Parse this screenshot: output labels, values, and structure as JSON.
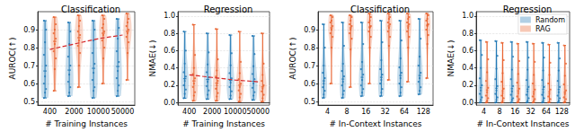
{
  "chart_data": [
    {
      "type": "violin",
      "title": "Classification",
      "x_label": "# Training Instances",
      "y_label": "AUROC(↑)",
      "categories": [
        "400",
        "2000",
        "10000",
        "50000"
      ],
      "ylim": [
        0.48,
        1.0
      ],
      "yticks": [
        0.5,
        0.6,
        0.7,
        0.8,
        0.9
      ],
      "grid": true,
      "series": [
        {
          "name": "Random",
          "color": "#1f77b4",
          "values": [
            [
              0.52,
              0.55,
              0.57,
              0.6,
              0.64,
              0.7,
              0.76,
              0.83,
              0.9,
              0.95
            ],
            [
              0.53,
              0.55,
              0.58,
              0.61,
              0.65,
              0.7,
              0.75,
              0.82,
              0.89,
              0.94
            ],
            [
              0.52,
              0.56,
              0.58,
              0.62,
              0.66,
              0.71,
              0.77,
              0.84,
              0.9,
              0.95
            ],
            [
              0.53,
              0.56,
              0.59,
              0.63,
              0.67,
              0.72,
              0.78,
              0.85,
              0.91,
              0.96
            ]
          ]
        },
        {
          "name": "RAG",
          "color": "#e8602c",
          "values": [
            [
              0.56,
              0.68,
              0.74,
              0.78,
              0.82,
              0.85,
              0.88,
              0.9,
              0.93,
              0.97
            ],
            [
              0.58,
              0.7,
              0.77,
              0.81,
              0.84,
              0.87,
              0.89,
              0.92,
              0.95,
              0.98
            ],
            [
              0.6,
              0.74,
              0.8,
              0.84,
              0.87,
              0.89,
              0.91,
              0.93,
              0.96,
              0.98
            ],
            [
              0.62,
              0.77,
              0.83,
              0.86,
              0.88,
              0.9,
              0.92,
              0.94,
              0.96,
              0.99
            ]
          ]
        },
        {
          "type": "line",
          "color": "#d62728",
          "line_style": "dashed",
          "values": [
            0.79,
            0.82,
            0.85,
            0.87
          ]
        }
      ]
    },
    {
      "type": "violin",
      "title": "Regression",
      "x_label": "# Training Instances",
      "y_label": "NMAE(↓)",
      "categories": [
        "400",
        "2000",
        "10000",
        "50000"
      ],
      "ylim": [
        -0.03,
        1.05
      ],
      "yticks": [
        {
          "value": 0,
          "label": "0.0"
        },
        0.2,
        0.4,
        0.6,
        0.8,
        {
          "value": 1,
          "label": "1.0"
        }
      ],
      "grid": true,
      "series": [
        {
          "name": "Random",
          "color": "#1f77b4",
          "values": [
            [
              0.05,
              0.1,
              0.15,
              0.2,
              0.25,
              0.3,
              0.35,
              0.45,
              0.6,
              0.82
            ],
            [
              0.04,
              0.09,
              0.14,
              0.19,
              0.24,
              0.29,
              0.35,
              0.44,
              0.58,
              0.8
            ],
            [
              0.04,
              0.08,
              0.13,
              0.18,
              0.23,
              0.28,
              0.34,
              0.43,
              0.57,
              0.78
            ],
            [
              0.03,
              0.08,
              0.12,
              0.17,
              0.22,
              0.27,
              0.33,
              0.42,
              0.56,
              0.77
            ]
          ]
        },
        {
          "name": "RAG",
          "color": "#e8602c",
          "values": [
            [
              0.02,
              0.08,
              0.12,
              0.18,
              0.22,
              0.28,
              0.33,
              0.4,
              0.55,
              0.9
            ],
            [
              0.02,
              0.07,
              0.11,
              0.16,
              0.2,
              0.25,
              0.3,
              0.37,
              0.5,
              0.85
            ],
            [
              0.01,
              0.06,
              0.1,
              0.14,
              0.18,
              0.22,
              0.27,
              0.34,
              0.47,
              0.82
            ],
            [
              0.01,
              0.05,
              0.09,
              0.13,
              0.16,
              0.2,
              0.25,
              0.32,
              0.45,
              0.8
            ]
          ]
        },
        {
          "type": "line",
          "color": "#d62728",
          "line_style": "dashed",
          "values": [
            0.32,
            0.29,
            0.26,
            0.24
          ]
        }
      ]
    },
    {
      "type": "violin",
      "title": "Classification",
      "x_label": "# In-Context Instances",
      "y_label": "AUROC(↑)",
      "categories": [
        "4",
        "8",
        "16",
        "32",
        "64",
        "128"
      ],
      "ylim": [
        0.48,
        1.0
      ],
      "yticks": [
        0.5,
        0.6,
        0.7,
        0.8,
        0.9
      ],
      "grid": true,
      "series": [
        {
          "name": "Random",
          "color": "#1f77b4",
          "values": [
            [
              0.52,
              0.54,
              0.56,
              0.58,
              0.6,
              0.63,
              0.66,
              0.7,
              0.8,
              0.93
            ],
            [
              0.52,
              0.54,
              0.56,
              0.59,
              0.61,
              0.64,
              0.67,
              0.71,
              0.81,
              0.94
            ],
            [
              0.53,
              0.55,
              0.57,
              0.59,
              0.62,
              0.65,
              0.68,
              0.72,
              0.82,
              0.94
            ],
            [
              0.53,
              0.55,
              0.57,
              0.6,
              0.62,
              0.65,
              0.68,
              0.73,
              0.83,
              0.95
            ],
            [
              0.53,
              0.55,
              0.58,
              0.6,
              0.63,
              0.66,
              0.69,
              0.74,
              0.84,
              0.95
            ],
            [
              0.54,
              0.56,
              0.58,
              0.61,
              0.63,
              0.66,
              0.7,
              0.75,
              0.85,
              0.96
            ]
          ]
        },
        {
          "name": "RAG",
          "color": "#e8602c",
          "values": [
            [
              0.6,
              0.8,
              0.86,
              0.88,
              0.9,
              0.92,
              0.94,
              0.95,
              0.97,
              0.98
            ],
            [
              0.58,
              0.79,
              0.85,
              0.88,
              0.9,
              0.92,
              0.93,
              0.95,
              0.97,
              0.98
            ],
            [
              0.6,
              0.8,
              0.86,
              0.89,
              0.91,
              0.92,
              0.94,
              0.95,
              0.97,
              0.99
            ],
            [
              0.62,
              0.81,
              0.86,
              0.89,
              0.91,
              0.93,
              0.94,
              0.96,
              0.97,
              0.99
            ],
            [
              0.61,
              0.8,
              0.86,
              0.89,
              0.91,
              0.93,
              0.94,
              0.96,
              0.97,
              0.99
            ],
            [
              0.63,
              0.82,
              0.87,
              0.9,
              0.92,
              0.93,
              0.95,
              0.96,
              0.98,
              0.99
            ]
          ]
        }
      ]
    },
    {
      "type": "violin",
      "title": "Regression",
      "x_label": "# In-Context Instances",
      "y_label": "NMAE(↓)",
      "categories": [
        "4",
        "8",
        "16",
        "32",
        "64",
        "128"
      ],
      "ylim": [
        -0.03,
        1.05
      ],
      "yticks": [
        {
          "value": 0,
          "label": "0.0"
        },
        0.2,
        0.4,
        0.6,
        0.8,
        {
          "value": 1,
          "label": "1.0"
        }
      ],
      "grid": true,
      "legend": "upper right",
      "series": [
        {
          "name": "Random",
          "color": "#1f77b4",
          "values": [
            [
              0.0,
              0.03,
              0.06,
              0.1,
              0.14,
              0.2,
              0.28,
              0.4,
              0.55,
              0.72
            ],
            [
              0.0,
              0.03,
              0.06,
              0.1,
              0.14,
              0.19,
              0.27,
              0.39,
              0.54,
              0.71
            ],
            [
              0.0,
              0.03,
              0.05,
              0.09,
              0.13,
              0.19,
              0.27,
              0.38,
              0.53,
              0.7
            ],
            [
              0.0,
              0.02,
              0.05,
              0.09,
              0.13,
              0.18,
              0.26,
              0.38,
              0.52,
              0.7
            ],
            [
              0.0,
              0.02,
              0.05,
              0.09,
              0.12,
              0.18,
              0.26,
              0.37,
              0.52,
              0.69
            ],
            [
              0.0,
              0.02,
              0.05,
              0.08,
              0.12,
              0.18,
              0.25,
              0.37,
              0.51,
              0.69
            ]
          ]
        },
        {
          "name": "RAG",
          "color": "#e8602c",
          "values": [
            [
              0.0,
              0.02,
              0.05,
              0.08,
              0.12,
              0.17,
              0.25,
              0.35,
              0.5,
              0.7
            ],
            [
              0.0,
              0.02,
              0.05,
              0.08,
              0.11,
              0.16,
              0.24,
              0.34,
              0.49,
              0.69
            ],
            [
              0.0,
              0.02,
              0.04,
              0.07,
              0.11,
              0.16,
              0.23,
              0.33,
              0.48,
              0.68
            ],
            [
              0.0,
              0.02,
              0.04,
              0.07,
              0.1,
              0.15,
              0.22,
              0.32,
              0.47,
              0.68
            ],
            [
              0.0,
              0.01,
              0.04,
              0.07,
              0.1,
              0.15,
              0.22,
              0.32,
              0.46,
              0.67
            ],
            [
              0.0,
              0.01,
              0.04,
              0.06,
              0.1,
              0.14,
              0.21,
              0.31,
              0.45,
              0.66
            ]
          ]
        }
      ]
    }
  ]
}
